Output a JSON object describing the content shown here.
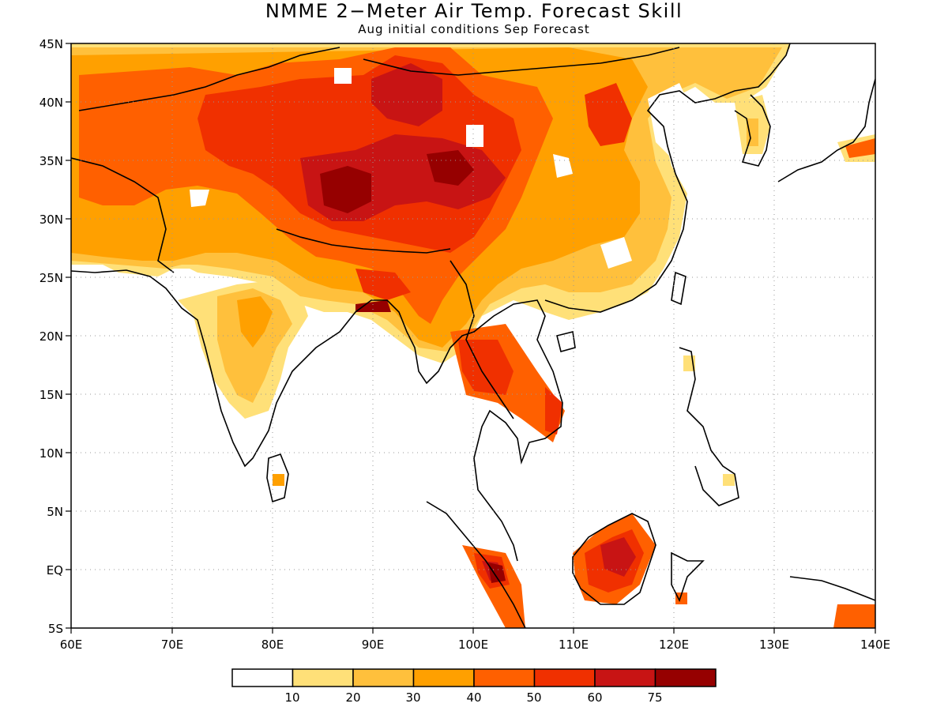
{
  "title": "NMME 2−Meter Air Temp. Forecast Skill",
  "subtitle": "Aug initial conditions  Sep Forecast",
  "map": {
    "lon_range": [
      60,
      140
    ],
    "lat_range": [
      -5,
      45
    ],
    "lon_ticks": [
      "60E",
      "70E",
      "80E",
      "90E",
      "100E",
      "110E",
      "120E",
      "130E",
      "140E"
    ],
    "lat_ticks": [
      "45N",
      "40N",
      "35N",
      "30N",
      "25N",
      "20N",
      "15N",
      "10N",
      "5N",
      "EQ",
      "5S"
    ],
    "grid": "dotted",
    "colors": [
      "#ffffff",
      "#ffe078",
      "#ffc03c",
      "#ffa000",
      "#ff6000",
      "#f03000",
      "#c81414",
      "#960000"
    ]
  },
  "colorbar": {
    "labels": [
      "10",
      "20",
      "30",
      "40",
      "50",
      "60",
      "75"
    ]
  }
}
